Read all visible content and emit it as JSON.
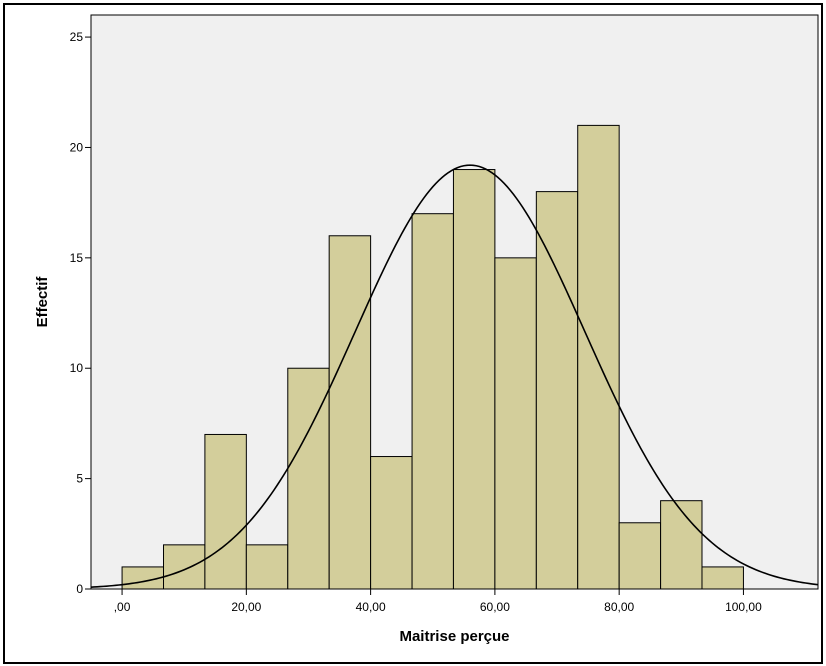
{
  "chart_data": {
    "type": "bar",
    "subtype": "histogram",
    "xlabel": "Maitrise perçue",
    "ylabel": "Effectif",
    "xlim": [
      -5,
      112
    ],
    "ylim": [
      0,
      26
    ],
    "x_ticks": [
      0,
      20,
      40,
      60,
      80,
      100
    ],
    "x_tick_labels": [
      ",00",
      "20,00",
      "40,00",
      "60,00",
      "80,00",
      "100,00"
    ],
    "y_ticks": [
      0,
      5,
      10,
      15,
      20,
      25
    ],
    "y_tick_labels": [
      "0",
      "5",
      "10",
      "15",
      "20",
      "25"
    ],
    "bins": [
      {
        "x0": 0,
        "x1": 6.67,
        "count": 1
      },
      {
        "x0": 6.67,
        "x1": 13.33,
        "count": 2
      },
      {
        "x0": 13.33,
        "x1": 20,
        "count": 7
      },
      {
        "x0": 20,
        "x1": 26.67,
        "count": 2
      },
      {
        "x0": 26.67,
        "x1": 33.33,
        "count": 10
      },
      {
        "x0": 33.33,
        "x1": 40,
        "count": 16
      },
      {
        "x0": 40,
        "x1": 46.67,
        "count": 6
      },
      {
        "x0": 46.67,
        "x1": 53.33,
        "count": 17
      },
      {
        "x0": 53.33,
        "x1": 60,
        "count": 19
      },
      {
        "x0": 60,
        "x1": 66.67,
        "count": 15
      },
      {
        "x0": 66.67,
        "x1": 73.33,
        "count": 18
      },
      {
        "x0": 73.33,
        "x1": 80,
        "count": 21
      },
      {
        "x0": 80,
        "x1": 86.67,
        "count": 3
      },
      {
        "x0": 86.67,
        "x1": 93.33,
        "count": 4
      },
      {
        "x0": 93.33,
        "x1": 100,
        "count": 1
      }
    ],
    "normal_curve": {
      "mean": 56,
      "sd": 18.5,
      "peak": 19.2
    },
    "grid": false,
    "colors": {
      "bar_fill": "#D3CE9B",
      "bar_stroke": "#000000",
      "plot_background": "#F0F0F0",
      "curve": "#000000"
    }
  }
}
